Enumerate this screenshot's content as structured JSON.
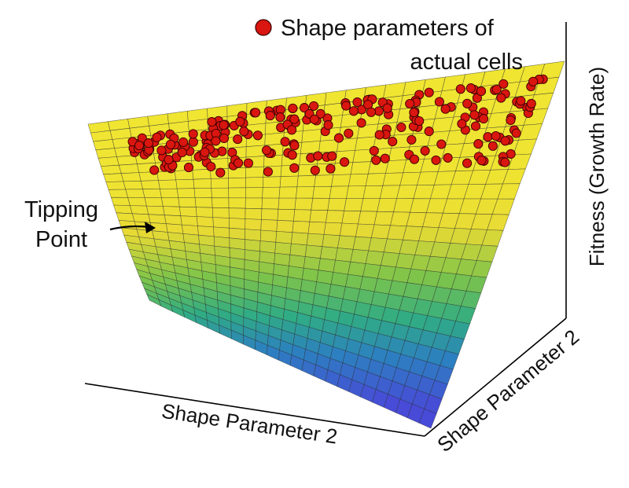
{
  "chart_data": {
    "type": "surface",
    "title": "",
    "legend": {
      "label_line1": "Shape parameters of",
      "label_line2": "actual cells",
      "marker": "red circle",
      "placement": "top-right"
    },
    "axes": {
      "x_label": "Shape Parameter 2",
      "y_label": "Shape Parameter 2",
      "z_label": "Fitness (Growth Rate)"
    },
    "annotation": {
      "line1": "Tipping",
      "line2": "Point",
      "arrow": true
    },
    "surface": {
      "description_free": true,
      "grid_u": 24,
      "grid_v": 24,
      "colormap": "viridis-like (blue to yellow)"
    },
    "points": {
      "count": 220,
      "color": "#d9160f"
    },
    "colors": {
      "marker_fill": "#d9160f",
      "marker_stroke": "#3a0000",
      "plateau": "#f4ec30",
      "low": "#4654d8",
      "axis": "#000000"
    }
  }
}
